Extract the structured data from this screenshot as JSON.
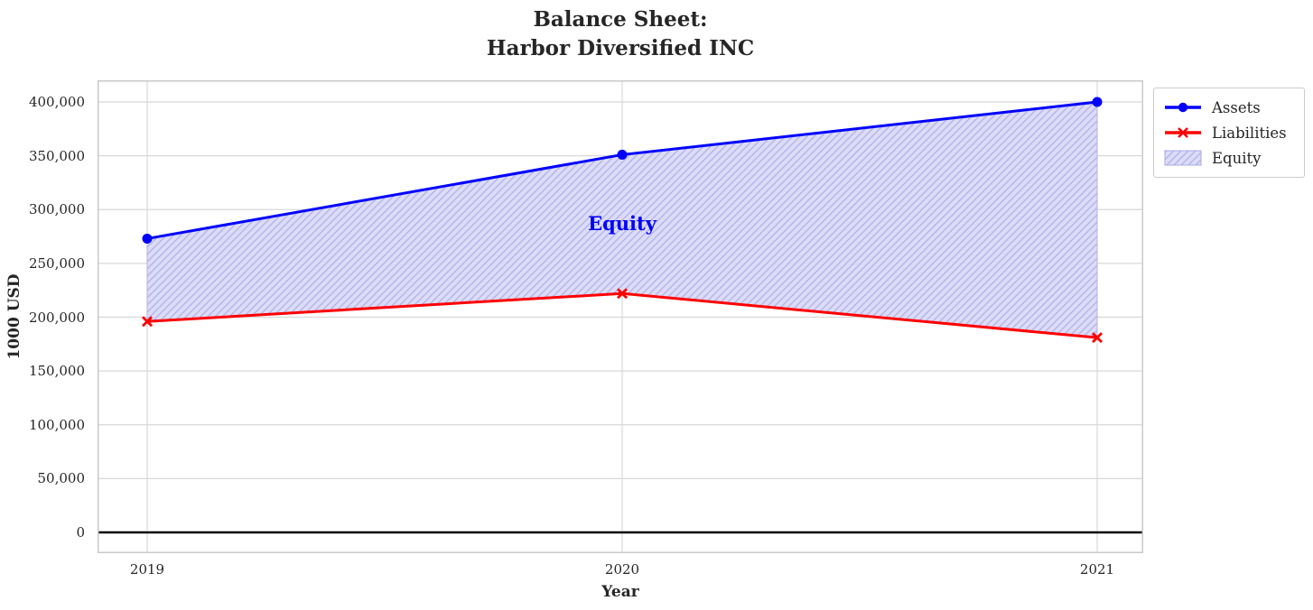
{
  "title": "Balance Sheet:\nHarbor Diversified INC",
  "chart_data": {
    "type": "line",
    "title": "Balance Sheet: Harbor Diversified INC",
    "xlabel": "Year",
    "ylabel": "1000 USD",
    "x": [
      2019,
      2020,
      2021
    ],
    "xtick_labels": [
      "2019",
      "2020",
      "2021"
    ],
    "yticks": [
      0,
      50000,
      100000,
      150000,
      200000,
      250000,
      300000,
      350000,
      400000
    ],
    "ytick_labels": [
      "0",
      "50,000",
      "100,000",
      "150,000",
      "200,000",
      "250,000",
      "300,000",
      "350,000",
      "400,000"
    ],
    "ylim": [
      -20000,
      422000
    ],
    "grid": true,
    "zero_line_color": "#000000",
    "series": [
      {
        "name": "Assets",
        "values": [
          273000,
          351000,
          400000
        ],
        "color": "#0000FF",
        "marker": "circle"
      },
      {
        "name": "Liabilities",
        "values": [
          196000,
          222000,
          181000
        ],
        "color": "#FF0000",
        "marker": "x"
      }
    ],
    "area": {
      "name": "Equity",
      "between": [
        "Assets",
        "Liabilities"
      ],
      "fill": "#DCDCF7",
      "hatch_color": "#B4B4EC",
      "edge_color": "#B4B4EC"
    },
    "annotation": {
      "text": "Equity",
      "x": 2020,
      "y": 287000,
      "color": "#0000FF"
    },
    "legend": {
      "position": "outside-top-right"
    }
  },
  "legend": {
    "items": [
      {
        "label": "Assets",
        "swatch": "line-circle",
        "color": "#0000FF"
      },
      {
        "label": "Liabilities",
        "swatch": "line-x",
        "color": "#FF0000"
      },
      {
        "label": "Equity",
        "swatch": "hatch-patch",
        "color": "#B4B4EC"
      }
    ]
  },
  "style": {
    "grid_color": "#D8D8D8",
    "spine_color": "#C9C9C9",
    "text_color": "#262626"
  }
}
